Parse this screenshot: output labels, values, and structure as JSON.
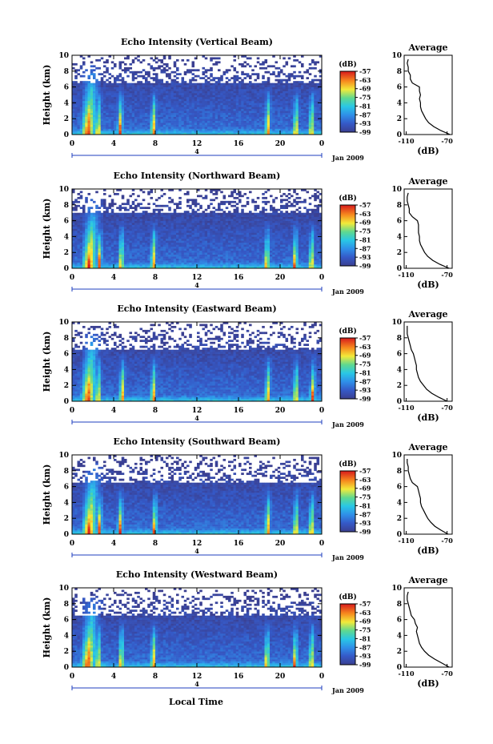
{
  "figure": {
    "xlabel": "Local Time",
    "date_label": "Jan 2009",
    "ylabel": "Height (km)",
    "colorbar_unit": "(dB)",
    "average_title": "Average",
    "average_xlabel": "(dB)",
    "day_marker": "4",
    "colors": {
      "background_echo": "#3a3f91",
      "strong_echo": "#d7191c",
      "axis": "#000000",
      "day_marker": "#1f3fbf"
    }
  },
  "chart_data": [
    {
      "type": "heatmap",
      "title": "Echo Intensity (Vertical Beam)",
      "xlabel": "",
      "ylabel": "Height (km)",
      "x_ticks": [
        "0",
        "4",
        "8",
        "12",
        "16",
        "20",
        "0"
      ],
      "y_ticks": [
        "0",
        "2",
        "4",
        "6",
        "8",
        "10"
      ],
      "xlim": [
        0,
        24
      ],
      "ylim": [
        0,
        10
      ],
      "colorbar": {
        "label": "(dB)",
        "ticks": [
          "-57",
          "-63",
          "-69",
          "-75",
          "-81",
          "-87",
          "-93",
          "-99"
        ],
        "range": [
          -99,
          -57
        ]
      },
      "convective_cells_hours": [
        1.5,
        2.5,
        4.6,
        7.8,
        18.8,
        21.5,
        23.0
      ],
      "echo_top_km": 6.5,
      "average_profile": {
        "title": "Average",
        "xlabel": "(dB)",
        "x_ticks": [
          "-110",
          "-70"
        ],
        "y_ticks": [
          "0",
          "2",
          "4",
          "6",
          "8",
          "10"
        ],
        "xlim": [
          -112,
          -65
        ],
        "ylim": [
          0,
          10
        ],
        "height_km": [
          0,
          0.5,
          1,
          1.5,
          2,
          2.5,
          3,
          3.5,
          4,
          4.5,
          5,
          5.5,
          6,
          6.5,
          7,
          7.5,
          8,
          8.5,
          9,
          9.5
        ],
        "db": [
          -67,
          -76,
          -83,
          -88,
          -91,
          -93,
          -95,
          -96,
          -96,
          -97,
          -96,
          -97,
          -97,
          -104,
          -106,
          -106,
          -108,
          -108,
          -109,
          -108
        ]
      }
    },
    {
      "type": "heatmap",
      "title": "Echo Intensity (Northward Beam)",
      "xlabel": "",
      "ylabel": "Height (km)",
      "x_ticks": [
        "0",
        "4",
        "8",
        "12",
        "16",
        "20",
        "0"
      ],
      "y_ticks": [
        "0",
        "2",
        "4",
        "6",
        "8",
        "10"
      ],
      "xlim": [
        0,
        24
      ],
      "ylim": [
        0,
        10
      ],
      "colorbar": {
        "label": "(dB)",
        "ticks": [
          "-57",
          "-63",
          "-69",
          "-75",
          "-81",
          "-87",
          "-93",
          "-99"
        ],
        "range": [
          -99,
          -57
        ]
      },
      "convective_cells_hours": [
        1.6,
        2.6,
        4.7,
        7.8,
        18.7,
        21.4,
        23.0
      ],
      "echo_top_km": 7.0,
      "average_profile": {
        "title": "Average",
        "xlabel": "(dB)",
        "x_ticks": [
          "-110",
          "-70"
        ],
        "y_ticks": [
          "0",
          "2",
          "4",
          "6",
          "8",
          "10"
        ],
        "xlim": [
          -112,
          -65
        ],
        "ylim": [
          0,
          10
        ],
        "height_km": [
          0,
          0.5,
          1,
          1.5,
          2,
          2.5,
          3,
          3.5,
          4,
          4.5,
          5,
          5.5,
          6,
          6.5,
          7,
          7.5,
          8,
          8.5,
          9,
          9.5
        ],
        "db": [
          -68,
          -77,
          -84,
          -89,
          -92,
          -94,
          -96,
          -97,
          -97,
          -98,
          -98,
          -98,
          -99,
          -104,
          -107,
          -107,
          -108,
          -109,
          -109,
          -108
        ]
      }
    },
    {
      "type": "heatmap",
      "title": "Echo Intensity (Eastward Beam)",
      "xlabel": "",
      "ylabel": "Height (km)",
      "x_ticks": [
        "0",
        "4",
        "8",
        "12",
        "16",
        "20",
        "0"
      ],
      "y_ticks": [
        "0",
        "2",
        "4",
        "6",
        "8",
        "10"
      ],
      "xlim": [
        0,
        24
      ],
      "ylim": [
        0,
        10
      ],
      "colorbar": {
        "label": "(dB)",
        "ticks": [
          "-57",
          "-63",
          "-69",
          "-75",
          "-81",
          "-87",
          "-93",
          "-99"
        ],
        "range": [
          -99,
          -57
        ]
      },
      "convective_cells_hours": [
        1.5,
        2.5,
        4.8,
        7.8,
        18.8,
        21.5,
        23.1
      ],
      "echo_top_km": 6.5,
      "average_profile": {
        "title": "Average",
        "xlabel": "(dB)",
        "x_ticks": [
          "-110",
          "-70"
        ],
        "y_ticks": [
          "0",
          "2",
          "4",
          "6",
          "8",
          "10"
        ],
        "xlim": [
          -112,
          -65
        ],
        "ylim": [
          0,
          10
        ],
        "height_km": [
          0,
          0.5,
          1,
          1.5,
          2,
          2.5,
          3,
          3.5,
          4,
          4.5,
          5,
          5.5,
          6,
          6.5,
          7,
          7.5,
          8,
          8.5,
          9,
          9.5
        ],
        "db": [
          -70,
          -78,
          -85,
          -90,
          -93,
          -96,
          -98,
          -99,
          -100,
          -100,
          -101,
          -102,
          -103,
          -105,
          -106,
          -107,
          -108,
          -109,
          -109,
          -109
        ]
      }
    },
    {
      "type": "heatmap",
      "title": "Echo Intensity (Southward Beam)",
      "xlabel": "",
      "ylabel": "Height (km)",
      "x_ticks": [
        "0",
        "4",
        "8",
        "12",
        "16",
        "20",
        "0"
      ],
      "y_ticks": [
        "0",
        "2",
        "4",
        "6",
        "8",
        "10"
      ],
      "xlim": [
        0,
        24
      ],
      "ylim": [
        0,
        10
      ],
      "colorbar": {
        "label": "(dB)",
        "ticks": [
          "-57",
          "-63",
          "-69",
          "-75",
          "-81",
          "-87",
          "-93",
          "-99"
        ],
        "range": [
          -99,
          -57
        ]
      },
      "convective_cells_hours": [
        1.6,
        2.6,
        4.6,
        7.9,
        18.8,
        21.5,
        23.0
      ],
      "echo_top_km": 6.5,
      "average_profile": {
        "title": "Average",
        "xlabel": "(dB)",
        "x_ticks": [
          "-110",
          "-70"
        ],
        "y_ticks": [
          "0",
          "2",
          "4",
          "6",
          "8",
          "10"
        ],
        "xlim": [
          -112,
          -65
        ],
        "ylim": [
          0,
          10
        ],
        "height_km": [
          0,
          0.5,
          1,
          1.5,
          2,
          2.5,
          3,
          3.5,
          4,
          4.5,
          5,
          5.5,
          6,
          6.5,
          7,
          7.5,
          8,
          8.5,
          9,
          9.5
        ],
        "db": [
          -69,
          -76,
          -82,
          -86,
          -89,
          -91,
          -93,
          -95,
          -96,
          -96,
          -97,
          -98,
          -99,
          -104,
          -106,
          -107,
          -108,
          -108,
          -109,
          -109
        ]
      }
    },
    {
      "type": "heatmap",
      "title": "Echo Intensity (Westward Beam)",
      "xlabel": "Local Time",
      "ylabel": "Height (km)",
      "x_ticks": [
        "0",
        "4",
        "8",
        "12",
        "16",
        "20",
        "0"
      ],
      "y_ticks": [
        "0",
        "2",
        "4",
        "6",
        "8",
        "10"
      ],
      "xlim": [
        0,
        24
      ],
      "ylim": [
        0,
        10
      ],
      "colorbar": {
        "label": "(dB)",
        "ticks": [
          "-57",
          "-63",
          "-69",
          "-75",
          "-81",
          "-87",
          "-93",
          "-99"
        ],
        "range": [
          -99,
          -57
        ]
      },
      "convective_cells_hours": [
        1.5,
        2.5,
        4.7,
        7.8,
        18.7,
        21.4,
        23.0
      ],
      "echo_top_km": 6.5,
      "average_profile": {
        "title": "Average",
        "xlabel": "(dB)",
        "x_ticks": [
          "-110",
          "-70"
        ],
        "y_ticks": [
          "0",
          "2",
          "4",
          "6",
          "8",
          "10"
        ],
        "xlim": [
          -112,
          -65
        ],
        "ylim": [
          0,
          10
        ],
        "height_km": [
          0,
          0.5,
          1,
          1.5,
          2,
          2.5,
          3,
          3.5,
          4,
          4.5,
          5,
          5.5,
          6,
          6.5,
          7,
          7.5,
          8,
          8.5,
          9,
          9.5
        ],
        "db": [
          -68,
          -75,
          -82,
          -88,
          -92,
          -95,
          -97,
          -98,
          -99,
          -100,
          -99,
          -101,
          -102,
          -105,
          -106,
          -107,
          -108,
          -109,
          -109,
          -108
        ]
      }
    }
  ]
}
